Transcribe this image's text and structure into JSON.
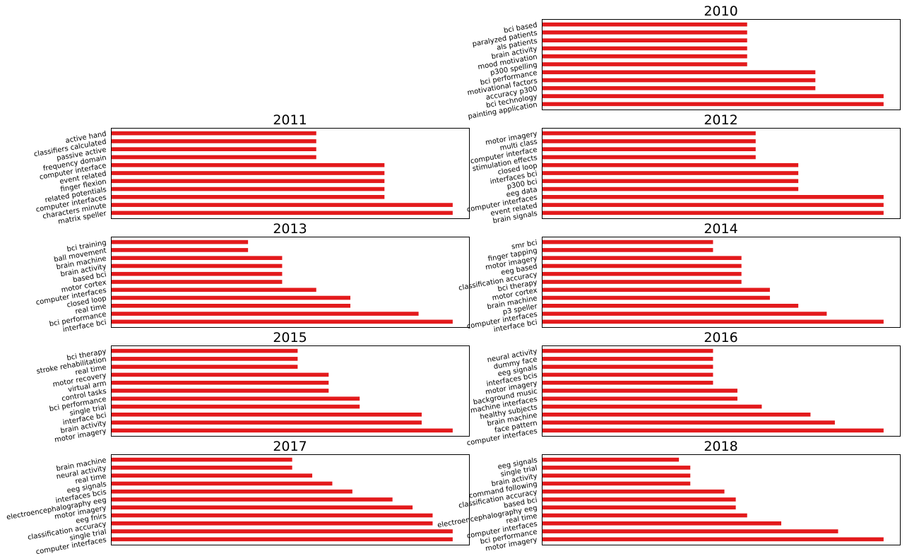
{
  "chart_data": [
    {
      "type": "bar",
      "orientation": "horizontal",
      "title": "2010",
      "categories": [
        "bci based",
        "paralyzed patients",
        "als patients",
        "brain activity",
        "mood motivation",
        "p300 spelling",
        "bci performance",
        "motivational factors",
        "accuracy p300",
        "bci technology",
        "painting application"
      ],
      "values": [
        3,
        3,
        3,
        3,
        3,
        3,
        4,
        4,
        4,
        5,
        5
      ],
      "xlim": [
        0,
        5.25
      ],
      "color": "#e31a1c"
    },
    {
      "type": "bar",
      "orientation": "horizontal",
      "title": "2011",
      "categories": [
        "active hand",
        "classifiers calculated",
        "passive active",
        "frequency domain",
        "computer interface",
        "event related",
        "finger flexion",
        "related potentials",
        "computer interfaces",
        "characters minute",
        "matrix speller"
      ],
      "values": [
        3,
        3,
        3,
        3,
        4,
        4,
        4,
        4,
        4,
        5,
        5
      ],
      "xlim": [
        0,
        5.25
      ],
      "color": "#e31a1c"
    },
    {
      "type": "bar",
      "orientation": "horizontal",
      "title": "2012",
      "categories": [
        "motor imagery",
        "multi class",
        "computer interface",
        "stimulation effects",
        "closed loop",
        "interfaces bci",
        "p300 bci",
        "eeg data",
        "computer interfaces",
        "event related",
        "brain signals"
      ],
      "values": [
        5,
        5,
        5,
        5,
        6,
        6,
        6,
        6,
        8,
        8,
        8
      ],
      "xlim": [
        0,
        8.4
      ],
      "color": "#e31a1c"
    },
    {
      "type": "bar",
      "orientation": "horizontal",
      "title": "2013",
      "categories": [
        "bci training",
        "ball movement",
        "brain machine",
        "brain activity",
        "based bci",
        "motor cortex",
        "computer interfaces",
        "closed loop",
        "real time",
        "bci performance",
        "interface bci"
      ],
      "values": [
        4,
        4,
        5,
        5,
        5,
        5,
        6,
        7,
        7,
        9,
        10
      ],
      "xlim": [
        0,
        10.5
      ],
      "color": "#e31a1c"
    },
    {
      "type": "bar",
      "orientation": "horizontal",
      "title": "2014",
      "categories": [
        "smr bci",
        "finger tapping",
        "motor imagery",
        "eeg based",
        "classification accuracy",
        "bci therapy",
        "motor cortex",
        "brain machine",
        "p3 speller",
        "computer interfaces",
        "interface bci"
      ],
      "values": [
        6,
        6,
        7,
        7,
        7,
        7,
        8,
        8,
        9,
        10,
        12
      ],
      "xlim": [
        0,
        12.6
      ],
      "color": "#e31a1c"
    },
    {
      "type": "bar",
      "orientation": "horizontal",
      "title": "2015",
      "categories": [
        "bci therapy",
        "stroke rehabilitation",
        "real time",
        "motor recovery",
        "virtual arm",
        "control tasks",
        "bci performance",
        "single trial",
        "interface bci",
        "brain activity",
        "motor imagery"
      ],
      "values": [
        6,
        6,
        6,
        7,
        7,
        7,
        8,
        8,
        10,
        10,
        11
      ],
      "xlim": [
        0,
        11.55
      ],
      "color": "#e31a1c"
    },
    {
      "type": "bar",
      "orientation": "horizontal",
      "title": "2016",
      "categories": [
        "neural activity",
        "dummy face",
        "eeg signals",
        "interfaces bcis",
        "motor imagery",
        "background music",
        "machine interfaces",
        "healthy subjects",
        "brain machine",
        "face pattern",
        "computer interfaces"
      ],
      "values": [
        7,
        7,
        7,
        7,
        7,
        8,
        8,
        9,
        11,
        12,
        14
      ],
      "xlim": [
        0,
        14.7
      ],
      "color": "#e31a1c"
    },
    {
      "type": "bar",
      "orientation": "horizontal",
      "title": "2017",
      "categories": [
        "brain machine",
        "neural activity",
        "real time",
        "eeg signals",
        "interfaces bcis",
        "electroencephalography eeg",
        "motor imagery",
        "eeg fnirs",
        "classification accuracy",
        "single trial",
        "computer interfaces"
      ],
      "values": [
        9,
        9,
        10,
        11,
        12,
        14,
        15,
        16,
        16,
        17,
        17
      ],
      "xlim": [
        0,
        17.85
      ],
      "color": "#e31a1c"
    },
    {
      "type": "bar",
      "orientation": "horizontal",
      "title": "2018",
      "categories": [
        "eeg signals",
        "single trial",
        "brain activity",
        "command following",
        "classification accuracy",
        "based bci",
        "electroencephalography eeg",
        "real time",
        "computer interfaces",
        "bci performance",
        "motor imagery"
      ],
      "values": [
        12,
        13,
        13,
        13,
        16,
        17,
        17,
        18,
        21,
        26,
        30
      ],
      "xlim": [
        0,
        31.5
      ],
      "color": "#e31a1c"
    }
  ]
}
